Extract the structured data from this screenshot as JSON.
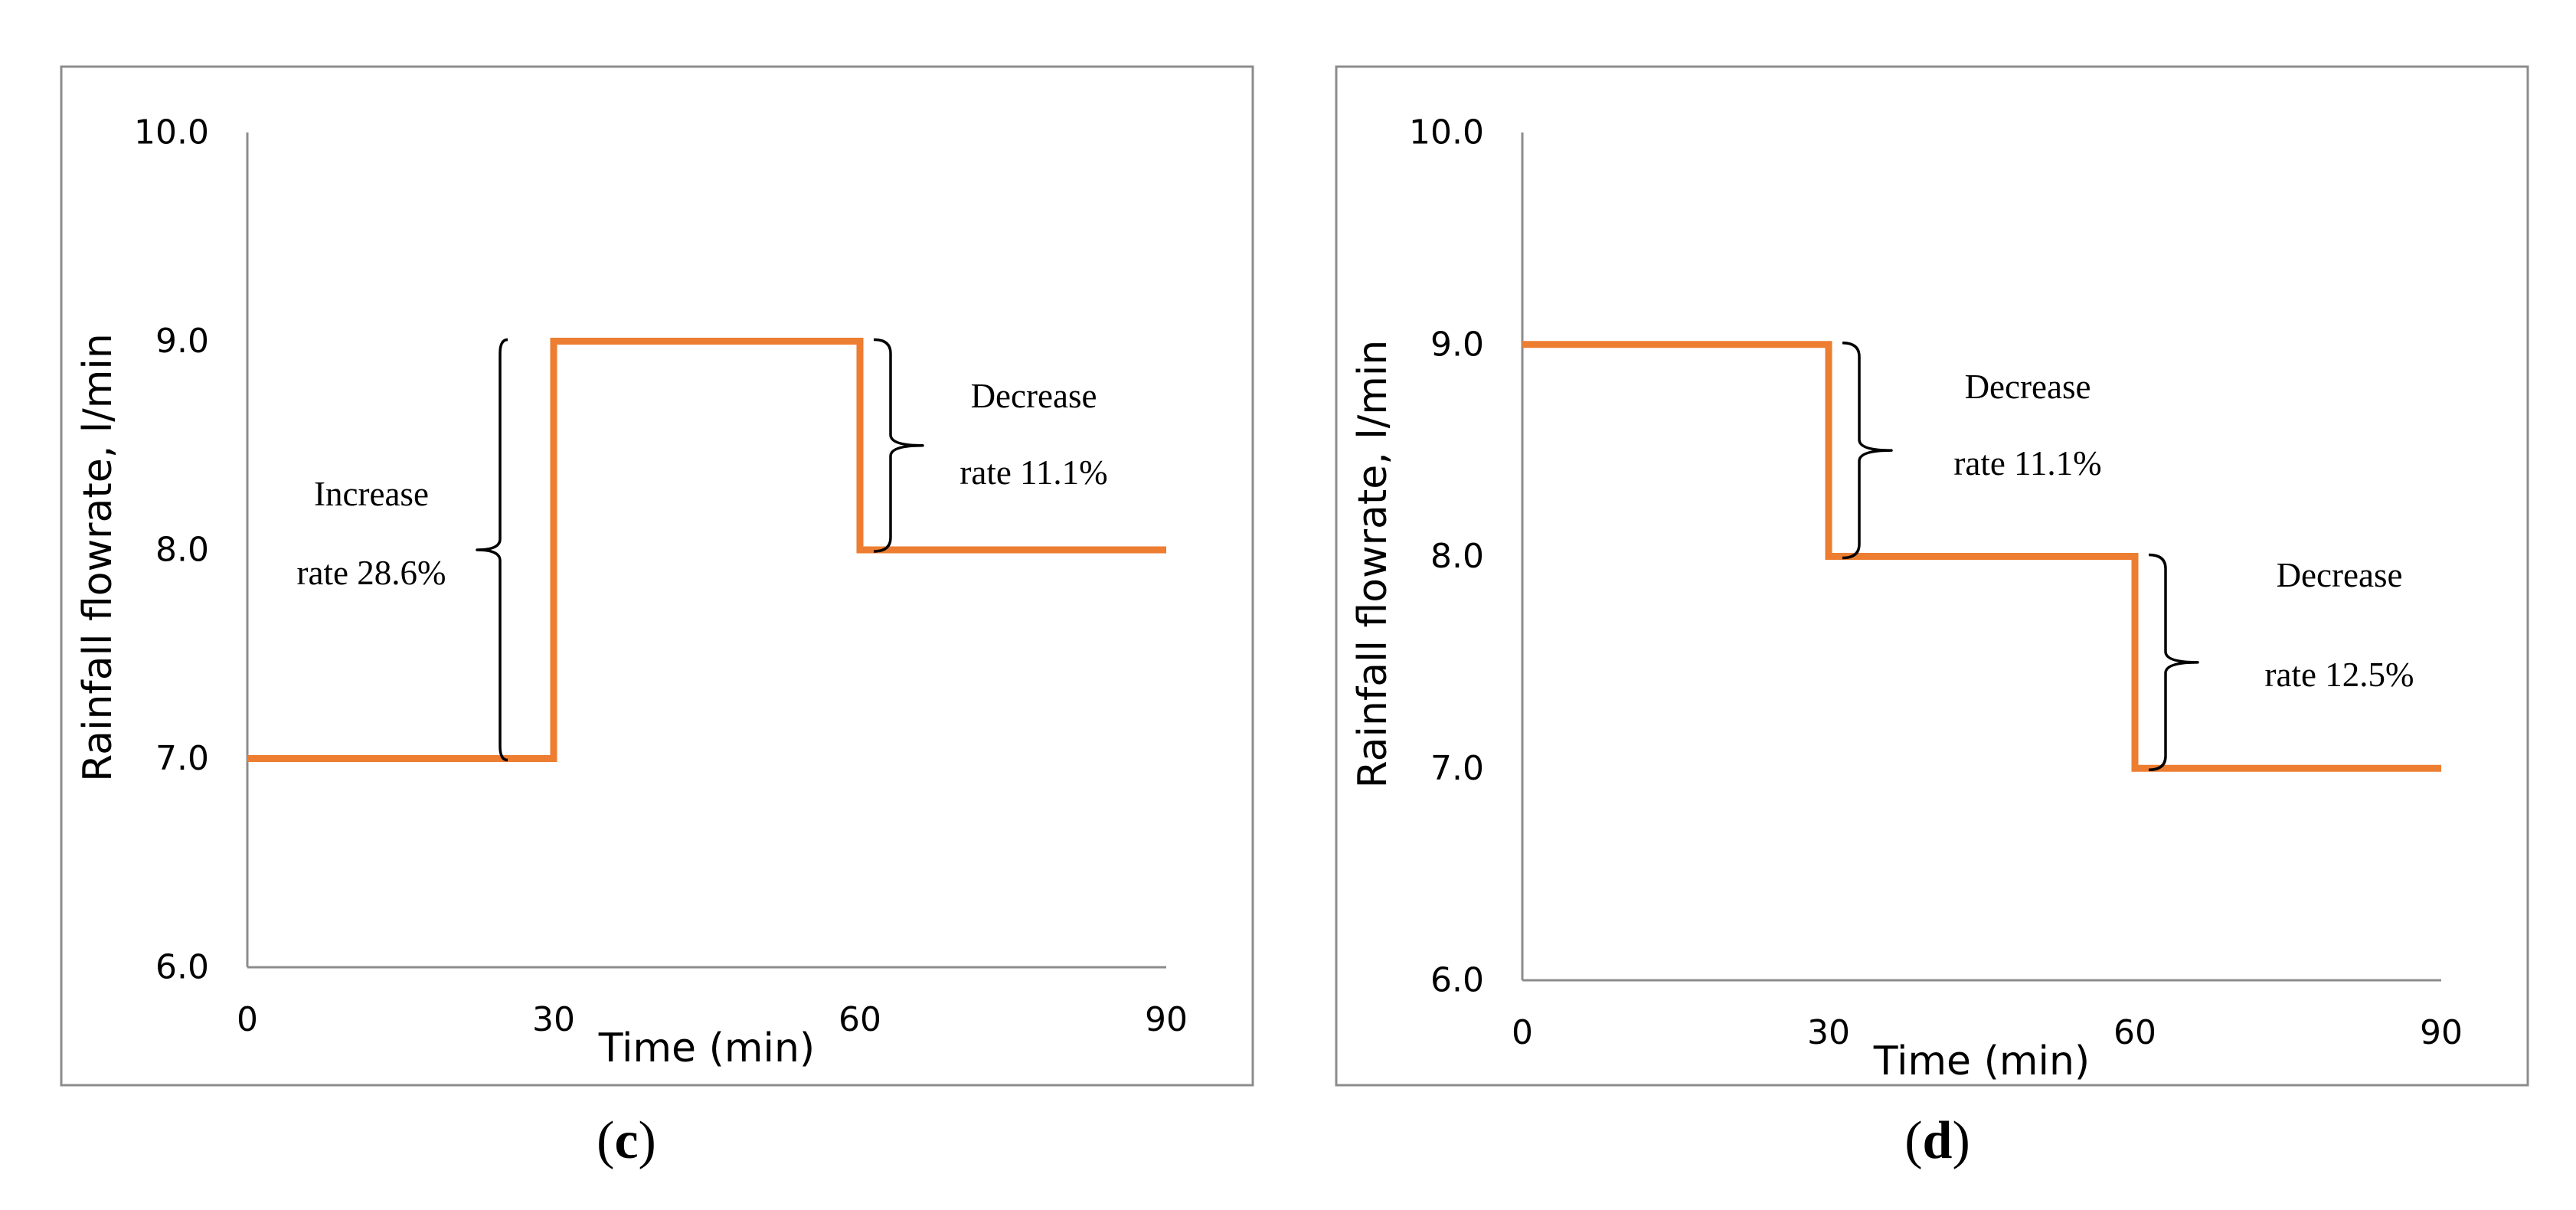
{
  "chart_data": [
    {
      "type": "line",
      "step": true,
      "panel_label": "c",
      "title": "",
      "xlabel": "Time (min)",
      "ylabel": "Rainfall flowrate, l/min",
      "xlim": [
        0,
        90
      ],
      "ylim": [
        6.0,
        10.0
      ],
      "x_ticks": [
        "0",
        "30",
        "60",
        "90"
      ],
      "y_ticks": [
        "6.0",
        "7.0",
        "8.0",
        "9.0",
        "10.0"
      ],
      "series": [
        {
          "name": "Rainfall flowrate",
          "color": "#ED7D31",
          "x": [
            0,
            30,
            30,
            60,
            60,
            90
          ],
          "y": [
            7.0,
            7.0,
            9.0,
            9.0,
            8.0,
            8.0
          ]
        }
      ],
      "annotations": [
        {
          "line1": "Increase",
          "line2": "rate 28.6%",
          "x": 30,
          "y_from": 7.0,
          "y_to": 9.0,
          "brace_side": "left"
        },
        {
          "line1": "Decrease",
          "line2": "rate 11.1%",
          "x": 60,
          "y_from": 9.0,
          "y_to": 8.0,
          "brace_side": "right"
        }
      ]
    },
    {
      "type": "line",
      "step": true,
      "panel_label": "d",
      "title": "",
      "xlabel": "Time (min)",
      "ylabel": "Rainfall flowrate, l/min",
      "xlim": [
        0,
        90
      ],
      "ylim": [
        6.0,
        10.0
      ],
      "x_ticks": [
        "0",
        "30",
        "60",
        "90"
      ],
      "y_ticks": [
        "6.0",
        "7.0",
        "8.0",
        "9.0",
        "10.0"
      ],
      "series": [
        {
          "name": "Rainfall flowrate",
          "color": "#ED7D31",
          "x": [
            0,
            30,
            30,
            60,
            60,
            90
          ],
          "y": [
            9.0,
            9.0,
            8.0,
            8.0,
            7.0,
            7.0
          ]
        }
      ],
      "annotations": [
        {
          "line1": "Decrease",
          "line2": "rate 11.1%",
          "x": 30,
          "y_from": 9.0,
          "y_to": 8.0,
          "brace_side": "right"
        },
        {
          "line1": "Decrease",
          "line2": "rate 12.5%",
          "x": 60,
          "y_from": 8.0,
          "y_to": 7.0,
          "brace_side": "right"
        }
      ]
    }
  ]
}
